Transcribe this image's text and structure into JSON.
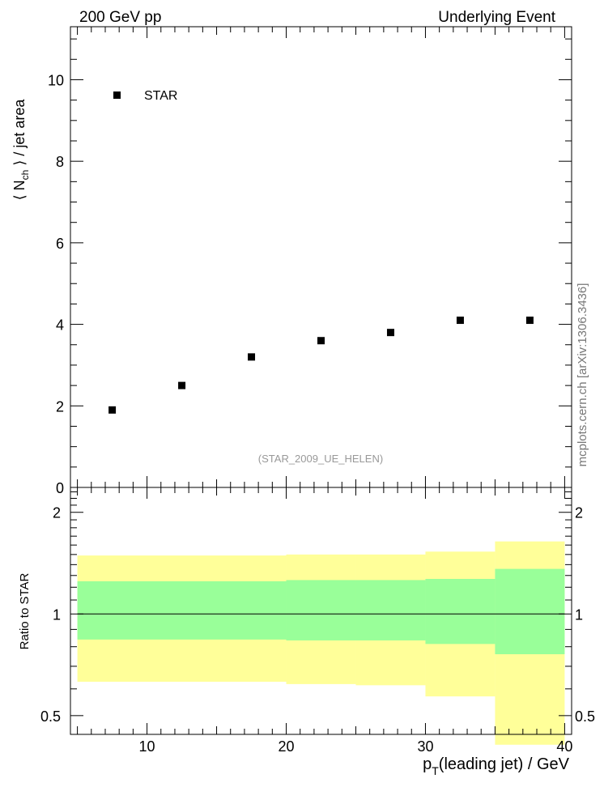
{
  "header": {
    "left_label": "200 GeV pp",
    "right_label": "Underlying Event"
  },
  "side_label": "mcplots.cern.ch [arXiv:1306.3436]",
  "colors": {
    "yellow_band": "#ffff99",
    "green_band": "#99ff99",
    "marker": "#000000",
    "analysis_label": "#999999"
  },
  "chart_data": [
    {
      "type": "scatter",
      "title": "",
      "analysis_label": "(STAR_2009_UE_HELEN)",
      "xlabel": "",
      "ylabel": "⟨ N_ch ⟩ / jet area",
      "ylabel_parts": {
        "pre": "⟨ N",
        "sub": "ch",
        "post": " ⟩ / jet area"
      },
      "xlim": [
        4.5,
        40.5
      ],
      "ylim": [
        0,
        11.3
      ],
      "yticks": [
        0,
        2,
        4,
        6,
        8,
        10
      ],
      "ytick_labels": [
        "0",
        "2",
        "4",
        "6",
        "8",
        "10"
      ],
      "legend_position": "top-left",
      "series": [
        {
          "name": "STAR",
          "marker": "square",
          "x": [
            7.5,
            12.5,
            17.5,
            22.5,
            27.5,
            32.5,
            37.5
          ],
          "y": [
            1.9,
            2.5,
            3.2,
            3.6,
            3.8,
            4.1,
            4.1
          ]
        }
      ]
    },
    {
      "type": "area",
      "title": "",
      "ylabel": "Ratio to STAR",
      "xlabel": "p_T(leading jet) / GeV",
      "xlabel_parts": {
        "pre": "p",
        "sub": "T",
        "post": "(leading jet) / GeV"
      },
      "xlim": [
        4.5,
        40.5
      ],
      "ylim": [
        0.44,
        2.37
      ],
      "xticks": [
        10,
        20,
        30,
        40
      ],
      "xtick_labels": [
        "10",
        "20",
        "30",
        "40"
      ],
      "yticks": [
        0.5,
        1,
        2
      ],
      "ytick_labels": [
        "0.5",
        "1",
        "2"
      ],
      "reference_line": 1,
      "bands": [
        {
          "name": "",
          "color": "yellow",
          "bins": [
            [
              5,
              20,
              0.63,
              1.49
            ],
            [
              20,
              25,
              0.62,
              1.5
            ],
            [
              25,
              30,
              0.615,
              1.5
            ],
            [
              30,
              35,
              0.57,
              1.53
            ],
            [
              35,
              40,
              0.41,
              1.64
            ]
          ]
        },
        {
          "name": "",
          "color": "green",
          "bins": [
            [
              5,
              20,
              0.84,
              1.25
            ],
            [
              20,
              25,
              0.835,
              1.26
            ],
            [
              25,
              30,
              0.835,
              1.26
            ],
            [
              30,
              35,
              0.815,
              1.27
            ],
            [
              35,
              40,
              0.76,
              1.36
            ]
          ]
        }
      ]
    }
  ]
}
